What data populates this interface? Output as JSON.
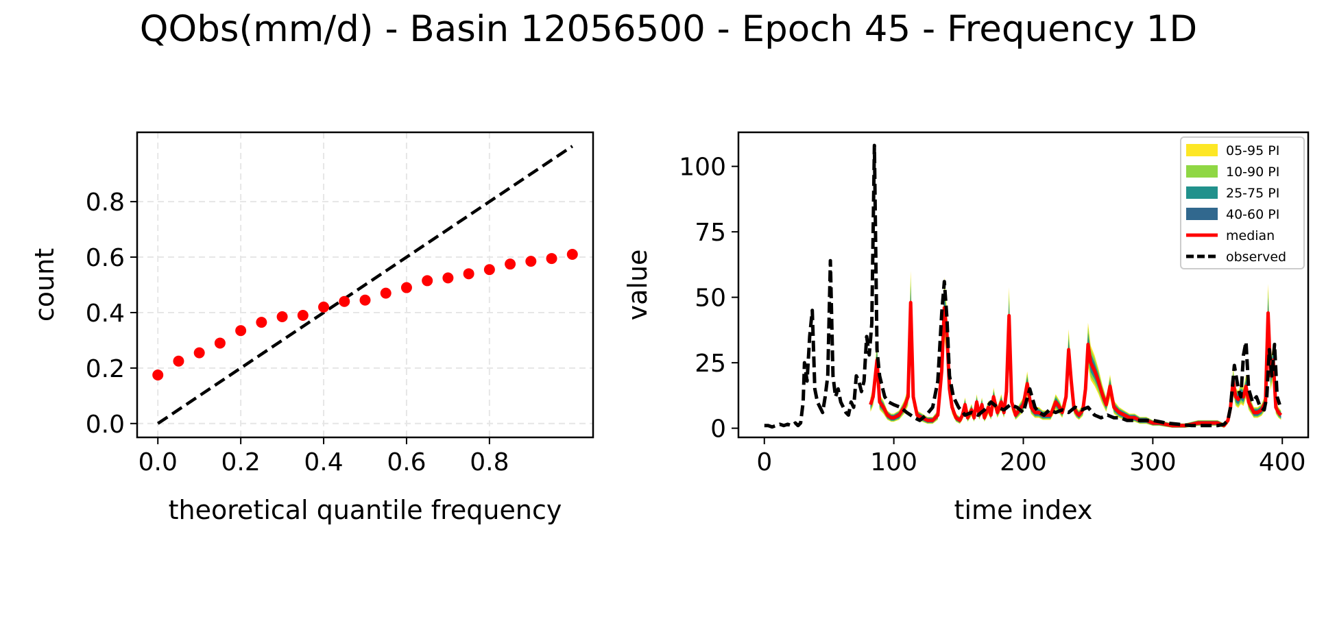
{
  "figure": {
    "title": "QObs(mm/d) - Basin 12056500 - Epoch 45 - Frequency 1D"
  },
  "chart_data": [
    {
      "type": "scatter",
      "xlabel": "theoretical quantile frequency",
      "ylabel": "count",
      "xlim": [
        -0.05,
        1.05
      ],
      "ylim": [
        -0.05,
        1.05
      ],
      "xticks": [
        "0.0",
        "0.2",
        "0.4",
        "0.6",
        "0.8"
      ],
      "yticks": [
        "0.0",
        "0.2",
        "0.4",
        "0.6",
        "0.8"
      ],
      "grid": true,
      "points": {
        "color": "#ff0000",
        "x": [
          0.0,
          0.05,
          0.1,
          0.15,
          0.2,
          0.25,
          0.3,
          0.35,
          0.4,
          0.45,
          0.5,
          0.55,
          0.6,
          0.65,
          0.7,
          0.75,
          0.8,
          0.85,
          0.9,
          0.95,
          1.0
        ],
        "y": [
          0.175,
          0.225,
          0.255,
          0.29,
          0.335,
          0.365,
          0.385,
          0.39,
          0.42,
          0.44,
          0.445,
          0.47,
          0.49,
          0.515,
          0.525,
          0.54,
          0.555,
          0.575,
          0.585,
          0.595,
          0.61
        ]
      },
      "reference_line": {
        "x": [
          0.0,
          1.0
        ],
        "y": [
          0.0,
          1.0
        ],
        "style": "dashed",
        "color": "#000000"
      }
    },
    {
      "type": "line",
      "xlabel": "time index",
      "ylabel": "value",
      "xlim": [
        -20,
        420
      ],
      "ylim": [
        -3.5,
        113
      ],
      "xticks": [
        "0",
        "100",
        "200",
        "300",
        "400"
      ],
      "yticks": [
        "0",
        "25",
        "50",
        "75",
        "100"
      ],
      "legend_position": "top-right",
      "legend": [
        {
          "label": "05-95 PI",
          "color": "#fde725",
          "kind": "patch"
        },
        {
          "label": "10-90 PI",
          "color": "#8fd744",
          "kind": "patch"
        },
        {
          "label": "25-75 PI",
          "color": "#21918c",
          "kind": "patch"
        },
        {
          "label": "40-60 PI",
          "color": "#31688e",
          "kind": "patch"
        },
        {
          "label": "median",
          "color": "#ff0000",
          "kind": "solid"
        },
        {
          "label": "observed",
          "color": "#000000",
          "kind": "dashed"
        }
      ],
      "median_x": [
        82,
        84,
        87,
        89,
        92,
        95,
        98,
        100,
        104,
        108,
        111,
        113,
        115,
        118,
        122,
        126,
        130,
        134,
        137,
        139,
        141,
        143,
        145,
        148,
        151,
        153,
        155,
        157,
        160,
        162,
        164,
        166,
        168,
        170,
        173,
        175,
        177,
        180,
        183,
        185,
        187,
        189,
        191,
        194,
        197,
        200,
        203,
        206,
        209,
        212,
        215,
        218,
        221,
        225,
        228,
        230,
        233,
        235,
        237,
        239,
        241,
        243,
        246,
        248,
        250,
        252,
        255,
        258,
        261,
        264,
        267,
        270,
        274,
        278,
        282,
        286,
        290,
        295,
        300,
        305,
        310,
        315,
        320,
        325,
        330,
        335,
        340,
        345,
        350,
        355,
        358,
        360,
        362,
        364,
        366,
        368,
        370,
        372,
        374,
        376,
        378,
        381,
        384,
        387,
        389,
        391,
        393,
        395,
        397,
        399
      ],
      "median_y": [
        9,
        12,
        26,
        10,
        8,
        5,
        4,
        4,
        5,
        8,
        12,
        48,
        12,
        5,
        4,
        3,
        3,
        5,
        22,
        46,
        36,
        15,
        8,
        4,
        3,
        5,
        9,
        4,
        7,
        4,
        10,
        5,
        9,
        4,
        8,
        5,
        12,
        6,
        10,
        6,
        14,
        43,
        10,
        5,
        7,
        9,
        17,
        8,
        6,
        6,
        5,
        5,
        5,
        10,
        8,
        6,
        12,
        30,
        18,
        8,
        6,
        5,
        7,
        15,
        32,
        25,
        22,
        18,
        13,
        9,
        16,
        8,
        6,
        5,
        4,
        4,
        3,
        3,
        2,
        2,
        1.5,
        1,
        1,
        1,
        1.5,
        2,
        2,
        2,
        2,
        1,
        3,
        8,
        18,
        12,
        11,
        13,
        12,
        16,
        10,
        8,
        6,
        6,
        7,
        10,
        44,
        20,
        26,
        8,
        6,
        5
      ],
      "band_halfwidth_ratio": {
        "p40_60": 0.06,
        "p25_75": 0.12,
        "p10_90": 0.19,
        "p05_95": 0.24
      },
      "observed_x": [
        0,
        3,
        6,
        9,
        12,
        15,
        18,
        21,
        24,
        26,
        28,
        30,
        31,
        33,
        35,
        37,
        39,
        41,
        43,
        45,
        47,
        49,
        51,
        53,
        55,
        57,
        59,
        61,
        63,
        65,
        67,
        69,
        71,
        73,
        75,
        77,
        79,
        81,
        83,
        85,
        87,
        89,
        91,
        93,
        96,
        100,
        105,
        110,
        113,
        116,
        120,
        125,
        130,
        134,
        137,
        139,
        141,
        143,
        146,
        150,
        155,
        160,
        165,
        170,
        175,
        180,
        185,
        190,
        195,
        200,
        205,
        209,
        212,
        216,
        220,
        225,
        230,
        235,
        240,
        245,
        250,
        255,
        260,
        265,
        270,
        275,
        280,
        290,
        300,
        310,
        320,
        330,
        340,
        350,
        355,
        358,
        360,
        363,
        366,
        368,
        370,
        372,
        374,
        377,
        380,
        383,
        386,
        388,
        390,
        392,
        394,
        396,
        398
      ],
      "observed_y": [
        1,
        1,
        0.5,
        1,
        1.5,
        1,
        1.5,
        1,
        2,
        1,
        2,
        10,
        25,
        18,
        35,
        45,
        15,
        10,
        8,
        6,
        12,
        20,
        64,
        20,
        12,
        15,
        10,
        8,
        6,
        5,
        10,
        8,
        20,
        18,
        14,
        18,
        35,
        28,
        40,
        108,
        30,
        20,
        16,
        12,
        10,
        9,
        8,
        6,
        5,
        4,
        3,
        5,
        8,
        18,
        44,
        56,
        42,
        20,
        12,
        8,
        5,
        6,
        5,
        7,
        10,
        8,
        7,
        9,
        8,
        6,
        15,
        8,
        6,
        5,
        7,
        6,
        7,
        6,
        8,
        7,
        8,
        5,
        4,
        5,
        4,
        4,
        3,
        3,
        3,
        2,
        1.5,
        1,
        1,
        1,
        1.5,
        3,
        8,
        24,
        15,
        12,
        28,
        33,
        15,
        10,
        12,
        8,
        7,
        12,
        30,
        20,
        32,
        12,
        9
      ]
    }
  ]
}
